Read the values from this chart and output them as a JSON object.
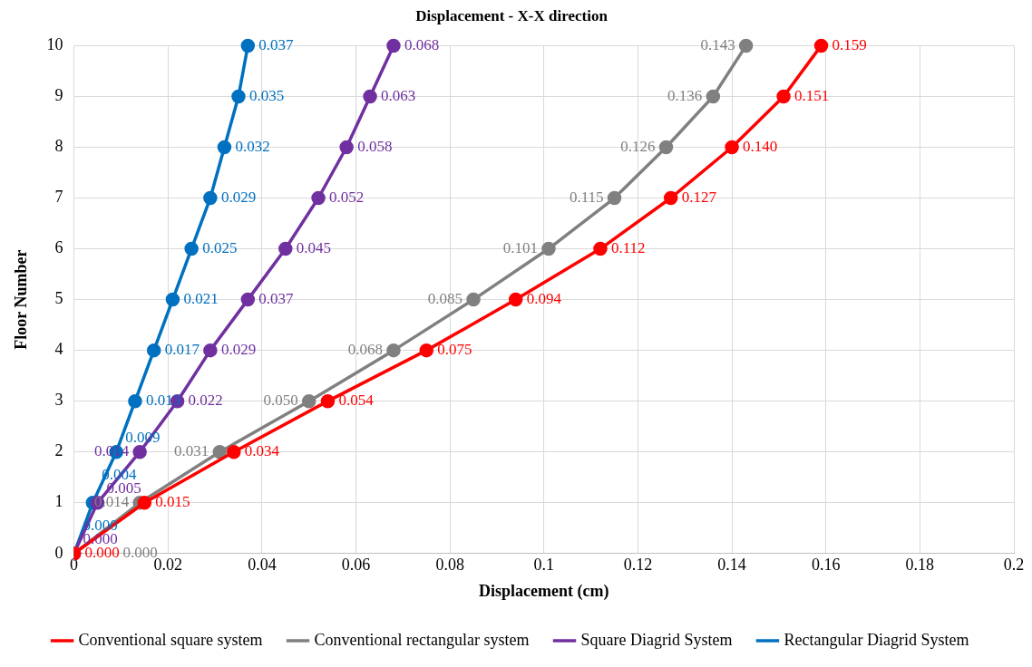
{
  "chart_data": {
    "type": "line",
    "orientation": "horizontal",
    "title": "Displacement - X-X direction",
    "xlabel": "Displacement (cm)",
    "ylabel": "Floor Number",
    "categories": [
      "10",
      "9",
      "8",
      "7",
      "6",
      "5",
      "4",
      "3",
      "2",
      "1",
      "0"
    ],
    "xlim": [
      0,
      0.2
    ],
    "xticks": [
      0,
      0.02,
      0.04,
      0.06,
      0.08,
      0.1,
      0.12,
      0.14,
      0.16,
      0.18,
      0.2
    ],
    "grid": true,
    "legend": "bottom",
    "marker": "circle",
    "line_style": "solid",
    "series": [
      {
        "name": "Conventional square system",
        "color": "#ff0000",
        "values": [
          0.159,
          0.151,
          0.14,
          0.127,
          0.112,
          0.094,
          0.075,
          0.054,
          0.034,
          0.015,
          0
        ],
        "value_labels": [
          "0.159",
          "0.151",
          "0.140",
          "0.127",
          "0.112",
          "0.094",
          "0.075",
          "0.054",
          "0.034",
          "0.015",
          "0.000"
        ]
      },
      {
        "name": "Conventional rectangular system",
        "color": "#808080",
        "values": [
          0.143,
          0.136,
          0.126,
          0.115,
          0.101,
          0.085,
          0.068,
          0.05,
          0.031,
          0.014,
          0
        ],
        "value_labels": [
          "0.143",
          "0.136",
          "0.126",
          "0.115",
          "0.101",
          "0.085",
          "0.068",
          "0.050",
          "0.031",
          "0.014",
          "0.000"
        ]
      },
      {
        "name": "Square Diagrid System",
        "color": "#7030a0",
        "values": [
          0.068,
          0.063,
          0.058,
          0.052,
          0.045,
          0.037,
          0.029,
          0.022,
          0.014,
          0.005,
          0
        ],
        "value_labels": [
          "0.068",
          "0.063",
          "0.058",
          "0.052",
          "0.045",
          "0.037",
          "0.029",
          "0.022",
          "0.014",
          "0.005",
          "0.000"
        ]
      },
      {
        "name": "Rectangular Diagrid System",
        "color": "#0070c0",
        "values": [
          0.037,
          0.035,
          0.032,
          0.029,
          0.025,
          0.021,
          0.017,
          0.013,
          0.009,
          0.004,
          0
        ],
        "value_labels": [
          "0.037",
          "0.035",
          "0.032",
          "0.029",
          "0.025",
          "0.021",
          "0.017",
          "0.013",
          "0.009",
          "0.004",
          "0.000"
        ]
      }
    ]
  }
}
